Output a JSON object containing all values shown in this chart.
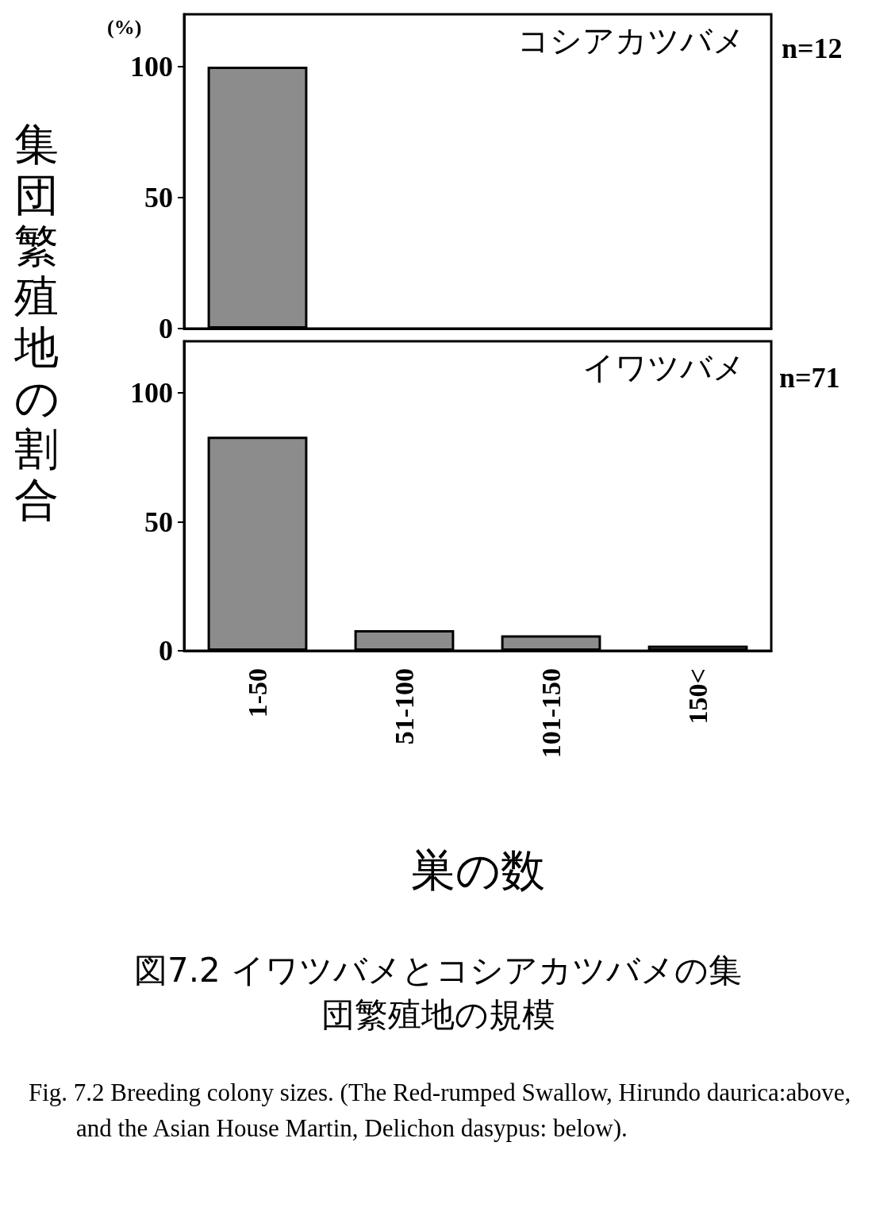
{
  "chart_data": [
    {
      "type": "bar",
      "title": "コシアカツバメ",
      "ylabel": "集団繁殖地の割合",
      "annotations": [
        "(%)",
        "n=12"
      ],
      "categories": [
        null,
        null,
        null,
        null
      ],
      "values": [
        100,
        0,
        0,
        0
      ],
      "color": "#8c8c8c",
      "ylim": [
        0,
        120
      ],
      "yticks": [
        0,
        50,
        100
      ],
      "tick_labels": "y"
    },
    {
      "type": "bar",
      "title": "イワツバメ",
      "xlabel": "巣の数",
      "annotations": [
        "n=71",
        "図7.2 イワツバメとコシアカツバメの集団繁殖地の規模",
        "Fig. 7.2  Breeding colony sizes. (The Red-rumped Swallow, Hirundo daurica:above, and the Asian House Martin, Delichon dasypus: below)."
      ],
      "categories": [
        "1-50",
        "51-100",
        "101-150",
        "150<"
      ],
      "values": [
        83,
        8,
        6,
        2
      ],
      "color": "#8c8c8c",
      "ylim": [
        0,
        120
      ],
      "yticks": [
        0,
        50,
        100
      ]
    }
  ]
}
